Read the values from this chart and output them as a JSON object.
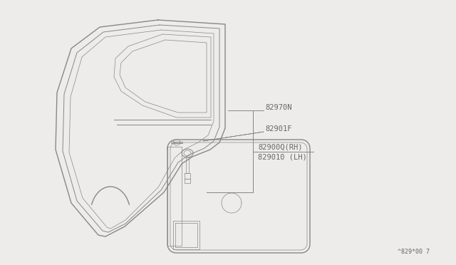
{
  "background_color": "#edecea",
  "line_color": "#888888",
  "line_color_dark": "#666666",
  "text_color": "#666666",
  "diagram_ref": "^829*00 7",
  "label_82970N": "82970N",
  "label_82901F": "82901F",
  "label_829000": "82900Q(RH)",
  "label_829010": "829010 (LH)"
}
